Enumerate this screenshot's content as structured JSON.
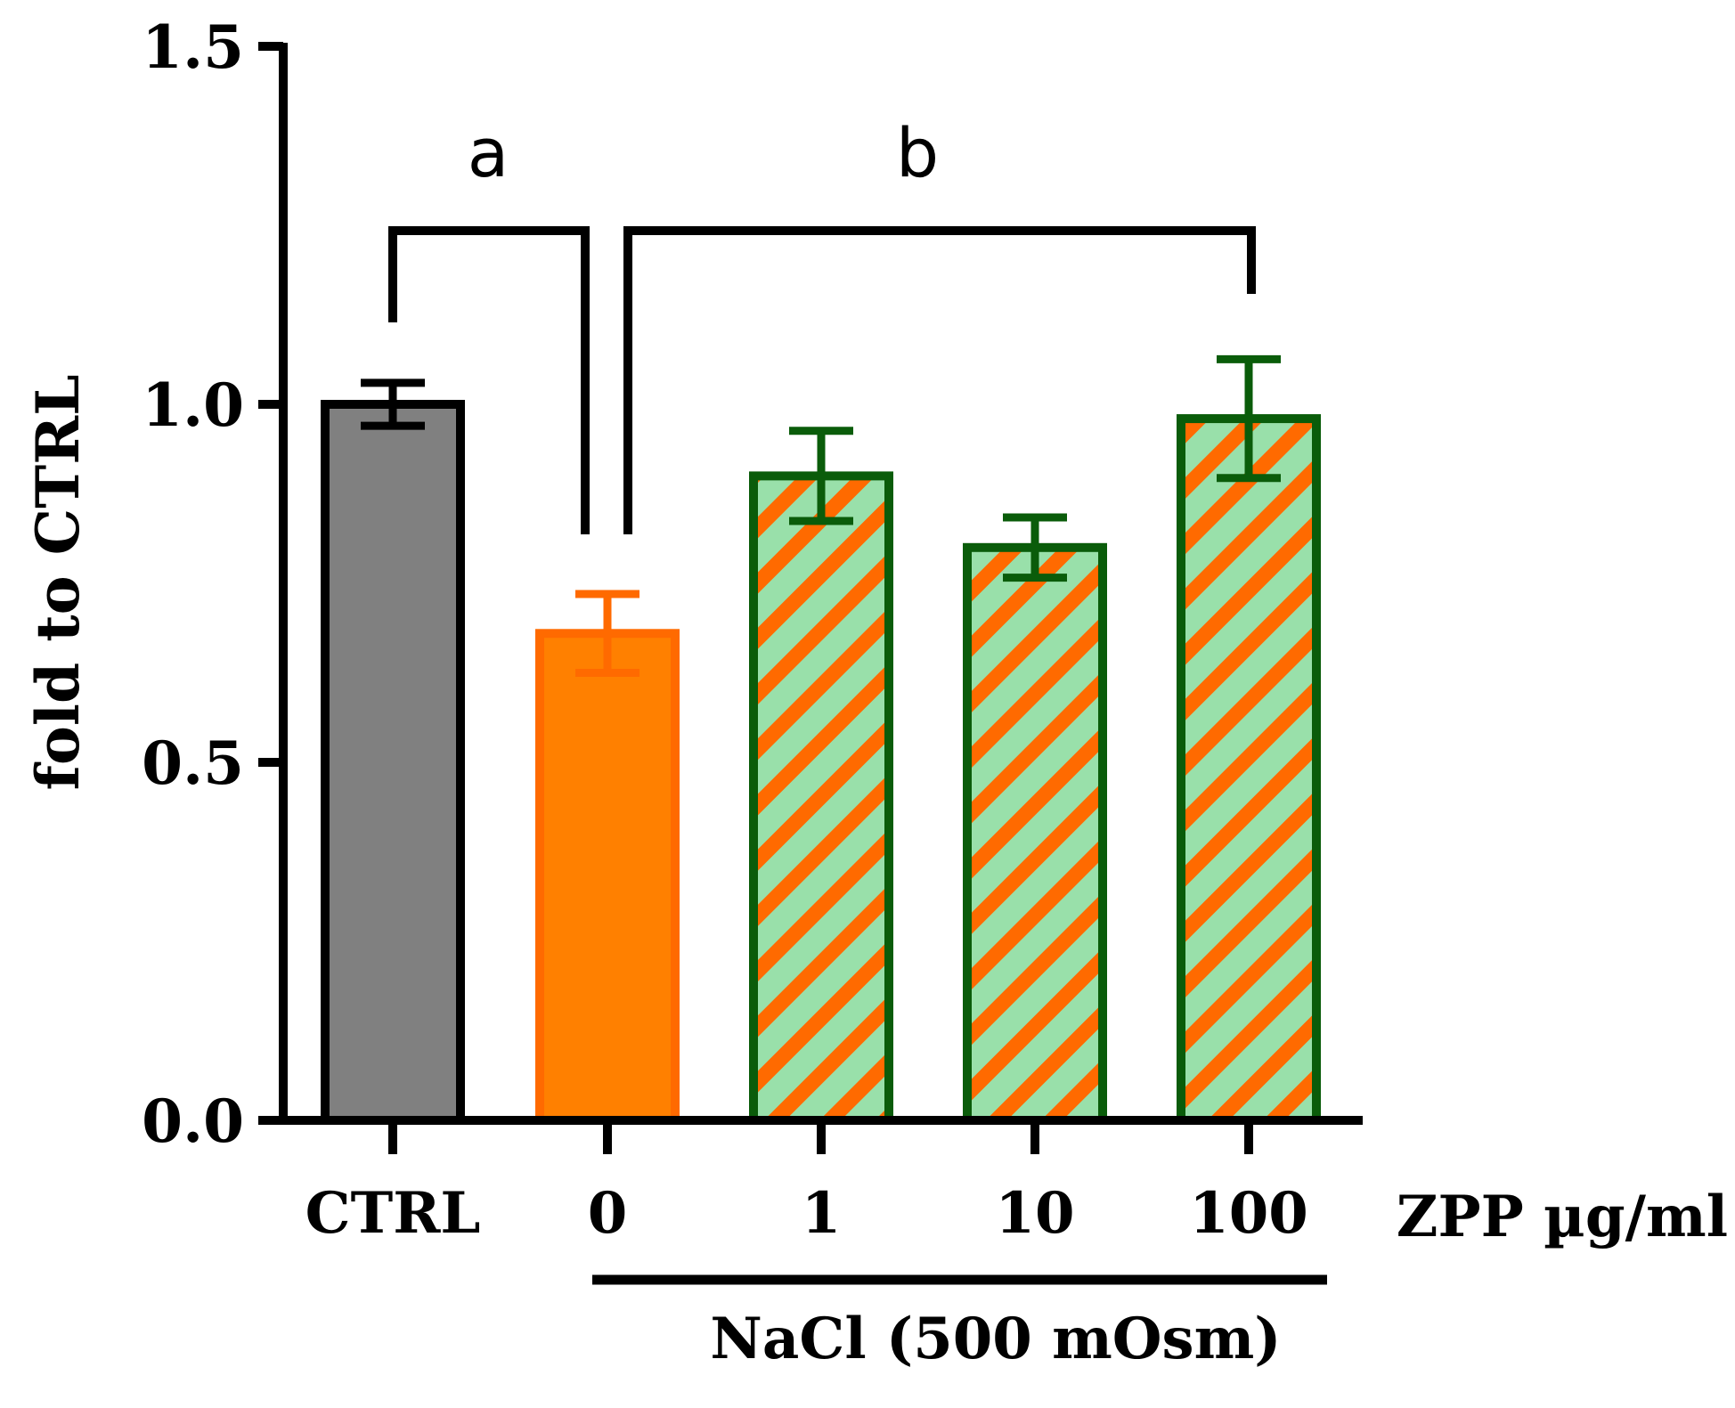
{
  "chart_data": {
    "type": "bar",
    "categories": [
      "CTRL",
      "0",
      "1",
      "10",
      "100"
    ],
    "values": [
      1.0,
      0.68,
      0.9,
      0.8,
      0.98
    ],
    "errors": [
      0.03,
      0.055,
      0.063,
      0.042,
      0.083
    ],
    "ylabel": "fold to CTRL",
    "ylim": [
      0,
      1.5
    ],
    "yticks": [
      "0.0",
      "0.5",
      "1.0",
      "1.5"
    ],
    "ytick_values": [
      0,
      0.5,
      1.0,
      1.5
    ],
    "xaxis_note": "ZPP µg/ml",
    "group_label": "NaCl (500 mOsm)",
    "annotations": [
      {
        "label": "a",
        "between": [
          "CTRL",
          "0"
        ]
      },
      {
        "label": "b",
        "between": [
          "0",
          "100"
        ]
      }
    ],
    "grid": false,
    "legend": "none"
  },
  "colors": {
    "ctrl_fill": "#808080",
    "ctrl_edge": "#000000",
    "nacl_fill": "#ff8000",
    "nacl_edge": "#ff6a00",
    "hatch_bg": "#99e0aa",
    "hatch_stripe": "#ff6a00",
    "hatch_edge": "#0a5c0a",
    "axis": "#000000"
  }
}
